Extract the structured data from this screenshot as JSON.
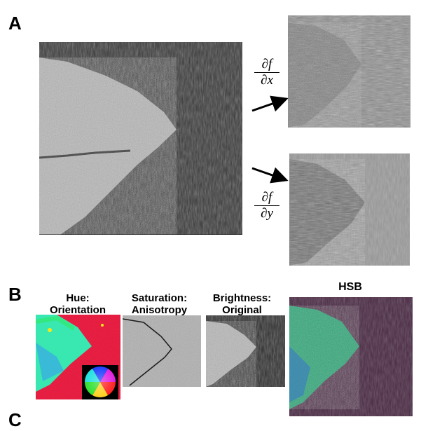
{
  "panels": {
    "a": {
      "label": "A"
    },
    "b": {
      "label": "B"
    },
    "c": {
      "label": "C"
    }
  },
  "panel_a": {
    "dfdx": {
      "numerator": "∂f",
      "denominator": "∂x"
    },
    "dfdy": {
      "numerator": "∂f",
      "denominator": "∂y"
    }
  },
  "panel_b": {
    "hue": {
      "line1": "Hue:",
      "line2": "Orientation"
    },
    "saturation": {
      "line1": "Saturation:",
      "line2": "Anisotropy"
    },
    "brightness": {
      "line1": "Brightness:",
      "line2": "Original"
    },
    "hsb": {
      "title": "HSB"
    }
  },
  "colors": {
    "background": "#ffffff",
    "text": "#000000",
    "tissue_dark": "#3a3a3a",
    "tissue_bright": "#c8c8c8",
    "gradient_gray": "#8a8a8a",
    "hue_red": "#e8143a",
    "hue_green": "#38e8b0",
    "hsb_purple": "#4a2a44"
  }
}
